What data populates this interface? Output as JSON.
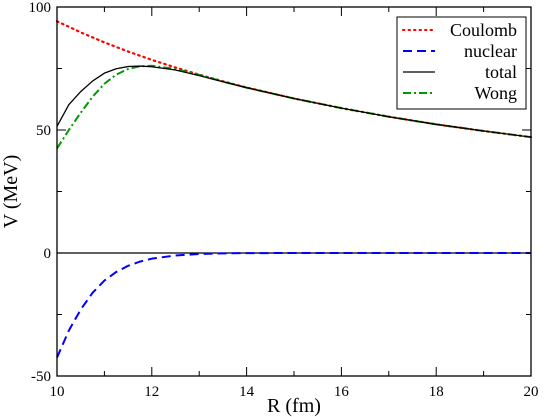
{
  "chart_data": {
    "type": "line",
    "xlabel": "R (fm)",
    "ylabel": "V (MeV)",
    "xlim": [
      10,
      20
    ],
    "ylim": [
      -50,
      100
    ],
    "x_ticks": [
      "10",
      "12",
      "14",
      "16",
      "18",
      "20"
    ],
    "y_ticks": [
      "-50",
      "0",
      "50",
      "100"
    ],
    "grid": false,
    "legend_position": "top-right",
    "zero_line": true,
    "series": [
      {
        "name": "Coulomb",
        "color": "#ff0000",
        "style": "dotted",
        "x": [
          10,
          10.5,
          11,
          11.5,
          12,
          12.5,
          13,
          13.5,
          14,
          15,
          16,
          17,
          18,
          19,
          20
        ],
        "y": [
          94.2,
          89.7,
          85.6,
          81.9,
          78.5,
          75.4,
          72.5,
          69.8,
          67.3,
          62.8,
          58.9,
          55.4,
          52.3,
          49.6,
          47.1
        ]
      },
      {
        "name": "nuclear",
        "color": "#0000ff",
        "style": "dashed",
        "x": [
          10,
          10.25,
          10.5,
          10.75,
          11,
          11.25,
          11.5,
          11.75,
          12,
          12.5,
          13,
          13.5,
          14,
          15,
          16,
          17,
          18,
          19,
          20
        ],
        "y": [
          -42.5,
          -31.5,
          -23,
          -16.2,
          -11.2,
          -7.7,
          -5.2,
          -3.5,
          -2.3,
          -1.0,
          -0.4,
          -0.15,
          -0.05,
          0,
          0,
          0,
          0,
          0,
          0
        ]
      },
      {
        "name": "total",
        "color": "#000000",
        "style": "solid",
        "x": [
          10,
          10.25,
          10.5,
          10.75,
          11,
          11.25,
          11.5,
          11.75,
          12,
          12.5,
          13,
          13.5,
          14,
          15,
          16,
          17,
          18,
          19,
          20
        ],
        "y": [
          51.5,
          60.3,
          65.6,
          69.9,
          73.1,
          74.9,
          75.8,
          76.0,
          75.7,
          74.4,
          72.1,
          69.6,
          67.2,
          62.8,
          58.9,
          55.4,
          52.3,
          49.6,
          47.1
        ]
      },
      {
        "name": "Wong",
        "color": "#009900",
        "style": "dashdot",
        "x": [
          10,
          10.25,
          10.5,
          10.75,
          11,
          11.25,
          11.5,
          11.75,
          12,
          12.5,
          13,
          13.5,
          14,
          15,
          16,
          17,
          18,
          19,
          20
        ],
        "y": [
          42.5,
          50,
          57,
          63.5,
          68.8,
          72.5,
          74.8,
          75.9,
          76.1,
          74.8,
          72.4,
          69.7,
          67.2,
          62.8,
          58.9,
          55.4,
          52.3,
          49.6,
          47.1
        ]
      }
    ]
  }
}
